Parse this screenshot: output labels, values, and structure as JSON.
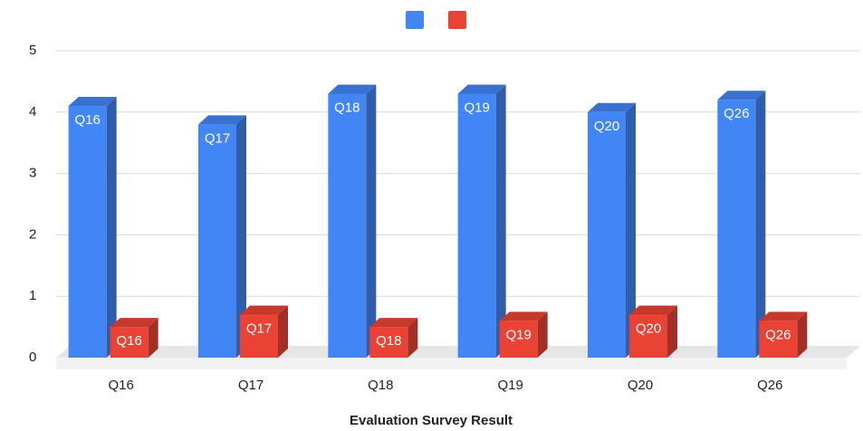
{
  "chart_data": {
    "type": "bar3d",
    "x_label": "Evaluation Survey Result",
    "categories": [
      "Q16",
      "Q17",
      "Q18",
      "Q19",
      "Q20",
      "Q26"
    ],
    "series": [
      {
        "color": "#4285f4",
        "values": [
          4.1,
          3.8,
          4.3,
          4.3,
          4.0,
          4.2
        ]
      },
      {
        "color": "#ea4335",
        "values": [
          0.5,
          0.7,
          0.5,
          0.6,
          0.7,
          0.6
        ]
      }
    ],
    "ylim": [
      0,
      5
    ],
    "yticks": [
      0,
      1,
      2,
      3,
      4,
      5
    ],
    "grid": true
  }
}
